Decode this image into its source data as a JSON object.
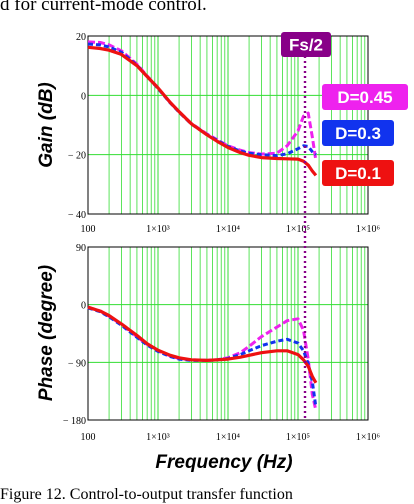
{
  "top_text": "d for current-mode control.",
  "caption": "Figure 12. Control-to-output transfer function",
  "colors": {
    "plot_bg": "#ffffff",
    "grid": "#33dd33",
    "d045": "#ee22ee",
    "d03": "#1133ee",
    "d01": "#ee1111",
    "fs_marker": "#880088"
  },
  "chart_data": [
    {
      "type": "line",
      "ylabel": "Gain (dB)",
      "xlabel": "",
      "xscale": "log",
      "xlim": [
        100,
        1000000
      ],
      "ylim": [
        -40,
        20
      ],
      "x_tick_labels": [
        "100",
        "1×10³",
        "1×10⁴",
        "1×10⁵",
        "1×10⁶"
      ],
      "y_tick_labels": [
        "20",
        "0",
        "− 20",
        "− 40"
      ],
      "y_tick_values": [
        20,
        0,
        -20,
        -40
      ],
      "grid": true,
      "x": [
        100,
        150,
        200,
        300,
        500,
        700,
        1000,
        1500,
        2000,
        3000,
        5000,
        7000,
        10000,
        15000,
        20000,
        30000,
        50000,
        70000,
        100000,
        120000,
        140000,
        160000,
        180000
      ],
      "series": [
        {
          "name": "D=0.45",
          "color": "#ee22ee",
          "values": [
            18,
            17.8,
            17,
            15,
            10.5,
            6.5,
            2.5,
            -2.5,
            -5.5,
            -9.5,
            -13,
            -15,
            -17,
            -18.5,
            -19.3,
            -19.8,
            -19.5,
            -17,
            -12,
            -7,
            -6,
            -14,
            -22
          ]
        },
        {
          "name": "D=0.3",
          "color": "#1133ee",
          "values": [
            17.3,
            17,
            16.3,
            14.5,
            10.2,
            6.3,
            2.3,
            -2.6,
            -5.7,
            -9.7,
            -13.2,
            -15.2,
            -17.2,
            -18.8,
            -19.5,
            -20,
            -20.3,
            -19.7,
            -18,
            -17,
            -17.2,
            -19,
            -20
          ]
        },
        {
          "name": "D=0.1",
          "color": "#ee1111",
          "values": [
            16.2,
            15.8,
            15.2,
            13.8,
            10,
            6.3,
            2.5,
            -2.4,
            -5.5,
            -9.6,
            -13.3,
            -15.5,
            -17.6,
            -19.3,
            -20.2,
            -21,
            -21.3,
            -21.4,
            -21.5,
            -22.2,
            -23.5,
            -25.5,
            -27
          ]
        }
      ],
      "annotations": [
        "Fs/2",
        "D=0.45",
        "D=0.3",
        "D=0.1"
      ]
    },
    {
      "type": "line",
      "ylabel": "Phase (degree)",
      "xlabel": "Frequency (Hz)",
      "xscale": "log",
      "xlim": [
        100,
        1000000
      ],
      "ylim": [
        -180,
        90
      ],
      "x_tick_labels": [
        "100",
        "1×10³",
        "1×10⁴",
        "1×10⁵",
        "1×10⁶"
      ],
      "y_tick_labels": [
        "90",
        "0",
        "− 90",
        "− 180"
      ],
      "y_tick_values": [
        90,
        0,
        -90,
        -180
      ],
      "grid": true,
      "x": [
        100,
        150,
        200,
        300,
        500,
        700,
        1000,
        1500,
        2000,
        3000,
        5000,
        7000,
        10000,
        15000,
        20000,
        30000,
        50000,
        70000,
        100000,
        120000,
        140000,
        160000,
        180000
      ],
      "series": [
        {
          "name": "D=0.45",
          "color": "#ee22ee",
          "values": [
            -4,
            -10,
            -18,
            -31,
            -50,
            -62,
            -72,
            -80,
            -84,
            -86,
            -87,
            -86,
            -83,
            -75,
            -65,
            -50,
            -35,
            -25,
            -22,
            -40,
            -85,
            -140,
            -165
          ]
        },
        {
          "name": "D=0.3",
          "color": "#1133ee",
          "values": [
            -5,
            -11,
            -19,
            -32,
            -51,
            -63,
            -73,
            -81,
            -85,
            -87,
            -87,
            -86,
            -84,
            -78,
            -72,
            -64,
            -57,
            -54,
            -60,
            -72,
            -92,
            -120,
            -160
          ]
        },
        {
          "name": "D=0.1",
          "color": "#ee1111",
          "values": [
            -4,
            -10,
            -17,
            -30,
            -48,
            -61,
            -71,
            -79,
            -83,
            -86,
            -87,
            -86,
            -85,
            -82,
            -79,
            -75,
            -72,
            -72,
            -78,
            -86,
            -96,
            -112,
            -122
          ]
        }
      ]
    }
  ]
}
